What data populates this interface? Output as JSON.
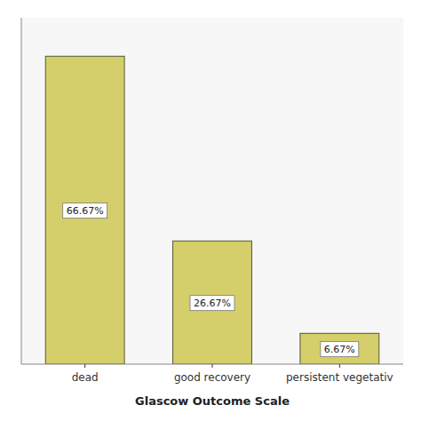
{
  "chart_data": {
    "type": "bar",
    "categories": [
      "dead",
      "good recovery",
      "persistent vegetativ"
    ],
    "values": [
      66.67,
      26.67,
      6.67
    ],
    "value_labels": [
      "66.67%",
      "26.67%",
      "6.67%"
    ],
    "data_labels": true,
    "xlabel": "Glascow Outcome Scale",
    "color": "#d4cf6a",
    "ylim": [
      0,
      75
    ],
    "tick_labels": "x"
  }
}
